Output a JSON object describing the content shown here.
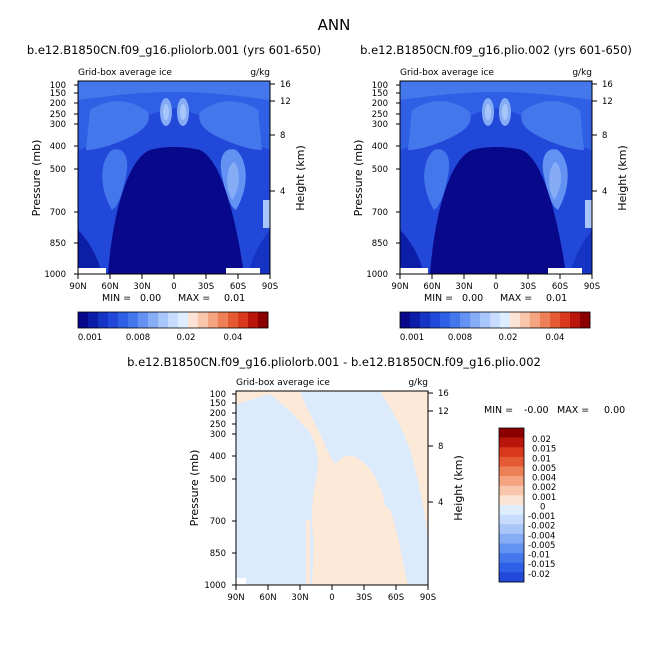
{
  "figure_title": "ANN",
  "chart_data": [
    {
      "type": "heatmap",
      "title": "b.e12.B1850CN.f09_g16.pliolorb.001 (yrs 601-650)",
      "subtitle_left": "Grid-box average ice",
      "subtitle_right": "g/kg",
      "ylabel": "Pressure (mb)",
      "ylabel_right": "Height (km)",
      "x_ticks": [
        "90N",
        "60N",
        "30N",
        "0",
        "30S",
        "60S",
        "90S"
      ],
      "y_ticks": [
        "100",
        "150",
        "200",
        "250",
        "300",
        "400",
        "500",
        "700",
        "850",
        "1000"
      ],
      "y_right_ticks": [
        "16",
        "12",
        "8",
        "4"
      ],
      "min_label": "MIN =",
      "min_value": "0.00",
      "max_label": "MAX =",
      "max_value": "0.01",
      "colorbar_labels": [
        "0.001",
        "0.008",
        "0.02",
        "0.04"
      ]
    },
    {
      "type": "heatmap",
      "title": "b.e12.B1850CN.f09_g16.plio.002 (yrs 601-650)",
      "subtitle_left": "Grid-box average ice",
      "subtitle_right": "g/kg",
      "ylabel": "Pressure (mb)",
      "ylabel_right": "Height (km)",
      "x_ticks": [
        "90N",
        "60N",
        "30N",
        "0",
        "30S",
        "60S",
        "90S"
      ],
      "y_ticks": [
        "100",
        "150",
        "200",
        "250",
        "300",
        "400",
        "500",
        "700",
        "850",
        "1000"
      ],
      "y_right_ticks": [
        "16",
        "12",
        "8",
        "4"
      ],
      "min_label": "MIN =",
      "min_value": "0.00",
      "max_label": "MAX =",
      "max_value": "0.01",
      "colorbar_labels": [
        "0.001",
        "0.008",
        "0.02",
        "0.04"
      ]
    },
    {
      "type": "heatmap",
      "title": "b.e12.B1850CN.f09_g16.pliolorb.001 - b.e12.B1850CN.f09_g16.plio.002",
      "subtitle_left": "Grid-box average ice",
      "subtitle_right": "g/kg",
      "ylabel": "Pressure (mb)",
      "ylabel_right": "Height (km)",
      "x_ticks": [
        "90N",
        "60N",
        "30N",
        "0",
        "30S",
        "60S",
        "90S"
      ],
      "y_ticks": [
        "100",
        "150",
        "200",
        "250",
        "300",
        "400",
        "500",
        "700",
        "850",
        "1000"
      ],
      "y_right_ticks": [
        "16",
        "12",
        "8",
        "4"
      ],
      "min_label": "MIN =",
      "min_value": "-0.00",
      "max_label": "MAX =",
      "max_value": "0.00",
      "colorbar_labels": [
        "0.02",
        "0.015",
        "0.01",
        "0.005",
        "0.004",
        "0.002",
        "0.001",
        "0",
        "-0.001",
        "-0.002",
        "-0.004",
        "-0.005",
        "-0.01",
        "-0.015",
        "-0.02"
      ]
    }
  ],
  "colors": {
    "blue_ramp": [
      "#08088a",
      "#0c1da8",
      "#1534c4",
      "#2148d8",
      "#2f5fe4",
      "#4577ec",
      "#6492f2",
      "#86acf6",
      "#a8c6fa",
      "#c8ddfd",
      "#dfeefe"
    ],
    "warm_ramp": [
      "#fde3d3",
      "#f9c6ab",
      "#f4a480",
      "#ee8058",
      "#e65a33",
      "#d8381b",
      "#b9150a",
      "#8a0000"
    ],
    "diff_negative": "#dcebfb",
    "diff_positive": "#fce9d8",
    "frame": "#000000"
  }
}
